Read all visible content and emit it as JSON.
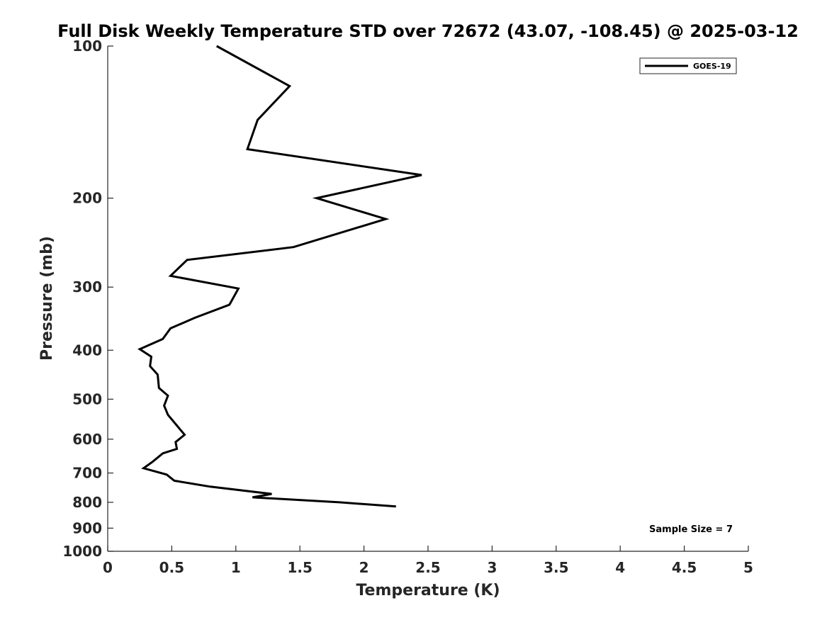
{
  "chart_data": {
    "type": "line",
    "title": "Full Disk Weekly Temperature STD over 72672 (43.07, -108.45) @ 2025-03-12",
    "xlabel": "Temperature (K)",
    "ylabel": "Pressure (mb)",
    "xlim": [
      0,
      5
    ],
    "ylim": [
      100,
      1000
    ],
    "yscale": "log",
    "y_reversed": true,
    "grid": false,
    "xticks": [
      0,
      0.5,
      1,
      1.5,
      2,
      2.5,
      3,
      3.5,
      4,
      4.5,
      5
    ],
    "xtick_labels": [
      "0",
      "0.5",
      "1",
      "1.5",
      "2",
      "2.5",
      "3",
      "3.5",
      "4",
      "4.5",
      "5"
    ],
    "yticks": [
      100,
      200,
      300,
      400,
      500,
      600,
      700,
      800,
      900,
      1000
    ],
    "ytick_labels": [
      "100",
      "200",
      "300",
      "400",
      "500",
      "600",
      "700",
      "800",
      "900",
      "1000"
    ],
    "legend_position": "top-right",
    "annotation": "Sample Size = 7",
    "series": [
      {
        "name": "GOES-19",
        "color": "#000000",
        "x": [
          0.85,
          1.42,
          1.17,
          1.09,
          2.45,
          1.63,
          2.17,
          1.45,
          0.62,
          0.49,
          1.02,
          0.95,
          0.68,
          0.49,
          0.43,
          0.25,
          0.34,
          0.33,
          0.39,
          0.4,
          0.47,
          0.44,
          0.47,
          0.6,
          0.53,
          0.54,
          0.43,
          0.35,
          0.28,
          0.46,
          0.52,
          0.8,
          1.28,
          1.13,
          1.81,
          2.25
        ],
        "y": [
          100,
          120,
          140,
          160,
          180,
          200,
          220,
          250,
          265,
          285,
          302,
          325,
          345,
          362,
          380,
          398,
          412,
          430,
          447,
          475,
          492,
          515,
          537,
          588,
          608,
          627,
          640,
          665,
          685,
          705,
          725,
          745,
          770,
          782,
          800,
          815
        ]
      }
    ]
  }
}
